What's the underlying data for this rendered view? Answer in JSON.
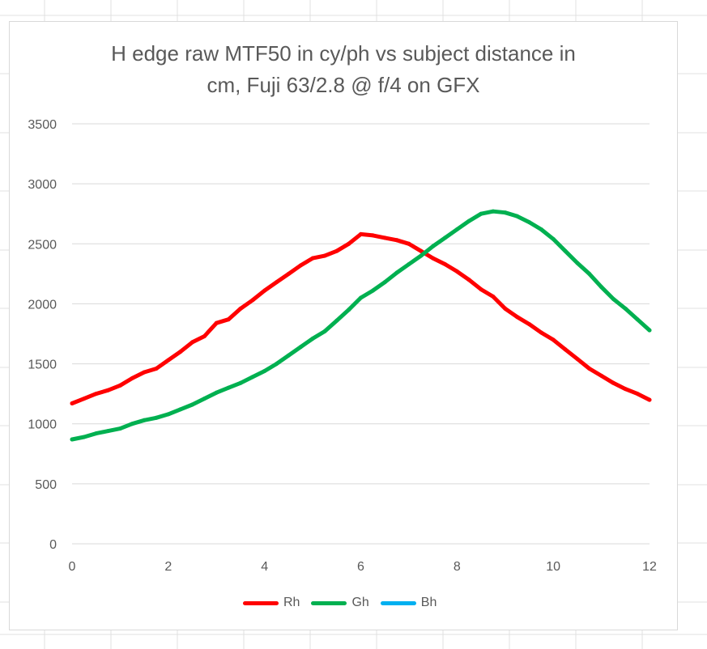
{
  "chart_data": {
    "type": "line",
    "title_lines": [
      "H edge raw MTF50 in cy/ph vs subject distance in",
      "cm, Fuji 63/2.8 @ f/4 on GFX"
    ],
    "xlabel": "",
    "ylabel": "",
    "xlim": [
      0,
      12
    ],
    "ylim": [
      0,
      3500
    ],
    "x_ticks": [
      "0",
      "2",
      "4",
      "6",
      "8",
      "10",
      "12"
    ],
    "y_ticks": [
      "0",
      "500",
      "1000",
      "1500",
      "2000",
      "2500",
      "3000",
      "3500"
    ],
    "grid": "horizontal",
    "legend_position": "bottom",
    "series": [
      {
        "name": "Rh",
        "color": "#ff0000",
        "x": [
          0,
          0.25,
          0.5,
          0.75,
          1,
          1.25,
          1.5,
          1.75,
          2,
          2.25,
          2.5,
          2.75,
          3,
          3.25,
          3.5,
          3.75,
          4,
          4.25,
          4.5,
          4.75,
          5,
          5.25,
          5.5,
          5.75,
          6,
          6.25,
          6.5,
          6.75,
          7,
          7.25,
          7.5,
          7.75,
          8,
          8.25,
          8.5,
          8.75,
          9,
          9.25,
          9.5,
          9.75,
          10,
          10.25,
          10.5,
          10.75,
          11,
          11.25,
          11.5,
          11.75,
          12
        ],
        "y": [
          1170,
          1210,
          1250,
          1280,
          1320,
          1380,
          1430,
          1460,
          1530,
          1600,
          1680,
          1730,
          1840,
          1870,
          1960,
          2030,
          2110,
          2180,
          2250,
          2320,
          2380,
          2400,
          2440,
          2500,
          2580,
          2570,
          2550,
          2530,
          2500,
          2440,
          2380,
          2330,
          2270,
          2200,
          2120,
          2060,
          1960,
          1890,
          1830,
          1760,
          1700,
          1620,
          1540,
          1460,
          1400,
          1340,
          1290,
          1250,
          1200
        ]
      },
      {
        "name": "Gh",
        "color": "#00b050",
        "x": [
          0,
          0.25,
          0.5,
          0.75,
          1,
          1.25,
          1.5,
          1.75,
          2,
          2.25,
          2.5,
          2.75,
          3,
          3.25,
          3.5,
          3.75,
          4,
          4.25,
          4.5,
          4.75,
          5,
          5.25,
          5.5,
          5.75,
          6,
          6.25,
          6.5,
          6.75,
          7,
          7.25,
          7.5,
          7.75,
          8,
          8.25,
          8.5,
          8.75,
          9,
          9.25,
          9.5,
          9.75,
          10,
          10.25,
          10.5,
          10.75,
          11,
          11.25,
          11.5,
          11.75,
          12
        ],
        "y": [
          870,
          890,
          920,
          940,
          960,
          1000,
          1030,
          1050,
          1080,
          1120,
          1160,
          1210,
          1260,
          1300,
          1340,
          1390,
          1440,
          1500,
          1570,
          1640,
          1710,
          1770,
          1860,
          1950,
          2050,
          2110,
          2180,
          2260,
          2330,
          2400,
          2480,
          2550,
          2620,
          2690,
          2750,
          2770,
          2760,
          2730,
          2680,
          2620,
          2540,
          2440,
          2340,
          2250,
          2140,
          2040,
          1960,
          1870,
          1780
        ]
      },
      {
        "name": "Bh",
        "color": "#00b0f0",
        "x": [],
        "y": []
      }
    ]
  }
}
